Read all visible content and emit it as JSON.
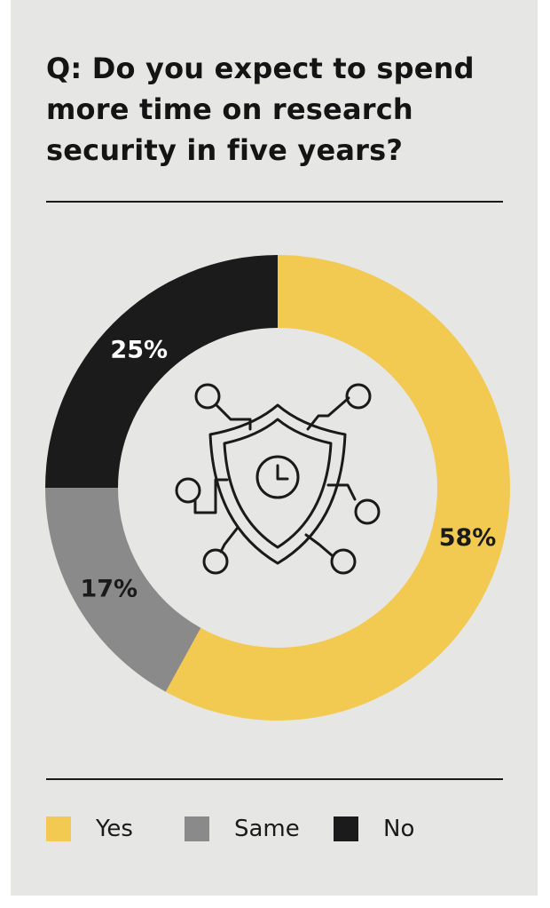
{
  "title": "Q: Do you expect to spend more time on research security in five years?",
  "colors": {
    "yes": "#f2ca52",
    "same": "#8a8a8a",
    "no": "#1b1b1b",
    "background": "#e6e6e4"
  },
  "chart_data": {
    "type": "pie",
    "title": "Q: Do you expect to spend more time on research security in five years?",
    "categories": [
      "Yes",
      "Same",
      "No"
    ],
    "values": [
      58,
      17,
      25
    ],
    "labels": [
      "58%",
      "17%",
      "25%"
    ],
    "unit": "%",
    "donut": true,
    "center_icon": "shield-clock-circuit-icon",
    "legend_position": "bottom"
  },
  "legend": [
    {
      "label": "Yes",
      "color": "#f2ca52"
    },
    {
      "label": "Same",
      "color": "#8a8a8a"
    },
    {
      "label": "No",
      "color": "#1b1b1b"
    }
  ]
}
